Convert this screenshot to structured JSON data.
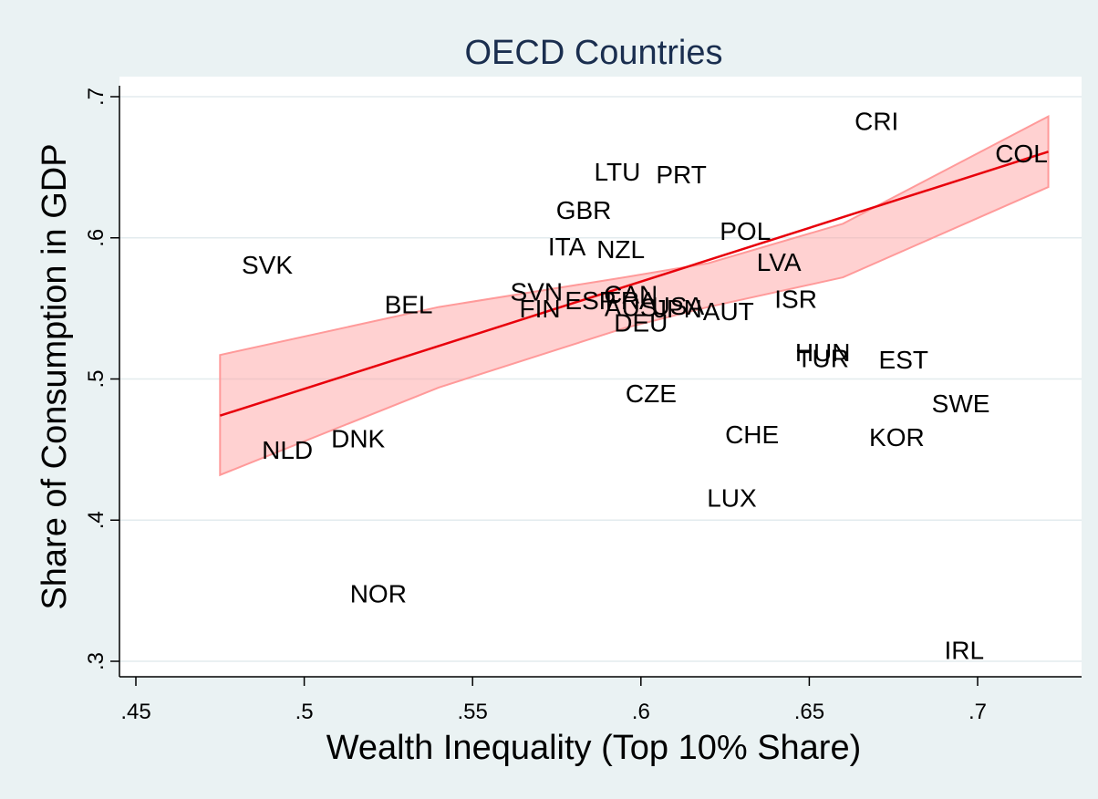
{
  "chart_data": {
    "type": "scatter",
    "title": "OECD Countries",
    "xlabel": "Wealth Inequality (Top 10% Share)",
    "ylabel": "Share of Consumption in GDP",
    "xlim": [
      0.445,
      0.725
    ],
    "ylim": [
      0.29,
      0.72
    ],
    "x_ticks": [
      0.45,
      0.5,
      0.55,
      0.6,
      0.65,
      0.7
    ],
    "x_tick_labels": [
      ".45",
      ".5",
      ".55",
      ".6",
      ".65",
      ".7"
    ],
    "y_ticks": [
      0.3,
      0.4,
      0.5,
      0.6,
      0.7
    ],
    "y_tick_labels": [
      ".3",
      ".4",
      ".5",
      ".6",
      ".7"
    ],
    "grid": true,
    "points": [
      {
        "label": "CRI",
        "x": 0.67,
        "y": 0.683
      },
      {
        "label": "COL",
        "x": 0.713,
        "y": 0.66
      },
      {
        "label": "LTU",
        "x": 0.593,
        "y": 0.647
      },
      {
        "label": "PRT",
        "x": 0.612,
        "y": 0.645
      },
      {
        "label": "GBR",
        "x": 0.583,
        "y": 0.62
      },
      {
        "label": "POL",
        "x": 0.631,
        "y": 0.605
      },
      {
        "label": "SVK",
        "x": 0.489,
        "y": 0.581
      },
      {
        "label": "ITA",
        "x": 0.578,
        "y": 0.594
      },
      {
        "label": "NZL",
        "x": 0.594,
        "y": 0.592
      },
      {
        "label": "LVA",
        "x": 0.641,
        "y": 0.583
      },
      {
        "label": "SVN",
        "x": 0.569,
        "y": 0.562
      },
      {
        "label": "CAN",
        "x": 0.597,
        "y": 0.56
      },
      {
        "label": "ISR",
        "x": 0.646,
        "y": 0.557
      },
      {
        "label": "BEL",
        "x": 0.531,
        "y": 0.553
      },
      {
        "label": "ESP",
        "x": 0.585,
        "y": 0.556
      },
      {
        "label": "FRA",
        "x": 0.597,
        "y": 0.556
      },
      {
        "label": "AUS",
        "x": 0.597,
        "y": 0.551
      },
      {
        "label": "FIN",
        "x": 0.57,
        "y": 0.55
      },
      {
        "label": "JPN",
        "x": 0.611,
        "y": 0.55
      },
      {
        "label": "USA",
        "x": 0.611,
        "y": 0.552
      },
      {
        "label": "AUT",
        "x": 0.626,
        "y": 0.548
      },
      {
        "label": "DEU",
        "x": 0.6,
        "y": 0.54
      },
      {
        "label": "HUN",
        "x": 0.654,
        "y": 0.519
      },
      {
        "label": "TUR",
        "x": 0.654,
        "y": 0.515
      },
      {
        "label": "EST",
        "x": 0.678,
        "y": 0.514
      },
      {
        "label": "CZE",
        "x": 0.603,
        "y": 0.49
      },
      {
        "label": "SWE",
        "x": 0.695,
        "y": 0.483
      },
      {
        "label": "CHE",
        "x": 0.633,
        "y": 0.461
      },
      {
        "label": "KOR",
        "x": 0.676,
        "y": 0.459
      },
      {
        "label": "DNK",
        "x": 0.516,
        "y": 0.458
      },
      {
        "label": "NLD",
        "x": 0.495,
        "y": 0.45
      },
      {
        "label": "LUX",
        "x": 0.627,
        "y": 0.416
      },
      {
        "label": "NOR",
        "x": 0.522,
        "y": 0.348
      },
      {
        "label": "IRL",
        "x": 0.696,
        "y": 0.308
      }
    ],
    "fit_line": {
      "x": [
        0.475,
        0.721
      ],
      "y": [
        0.474,
        0.661
      ],
      "color": "#e8000b"
    },
    "confidence_band": {
      "x": [
        0.475,
        0.54,
        0.595,
        0.62,
        0.66,
        0.721
      ],
      "lower": [
        0.432,
        0.494,
        0.536,
        0.551,
        0.572,
        0.636
      ],
      "upper": [
        0.517,
        0.551,
        0.572,
        0.582,
        0.61,
        0.686
      ],
      "color": "#ff9a9a"
    }
  }
}
